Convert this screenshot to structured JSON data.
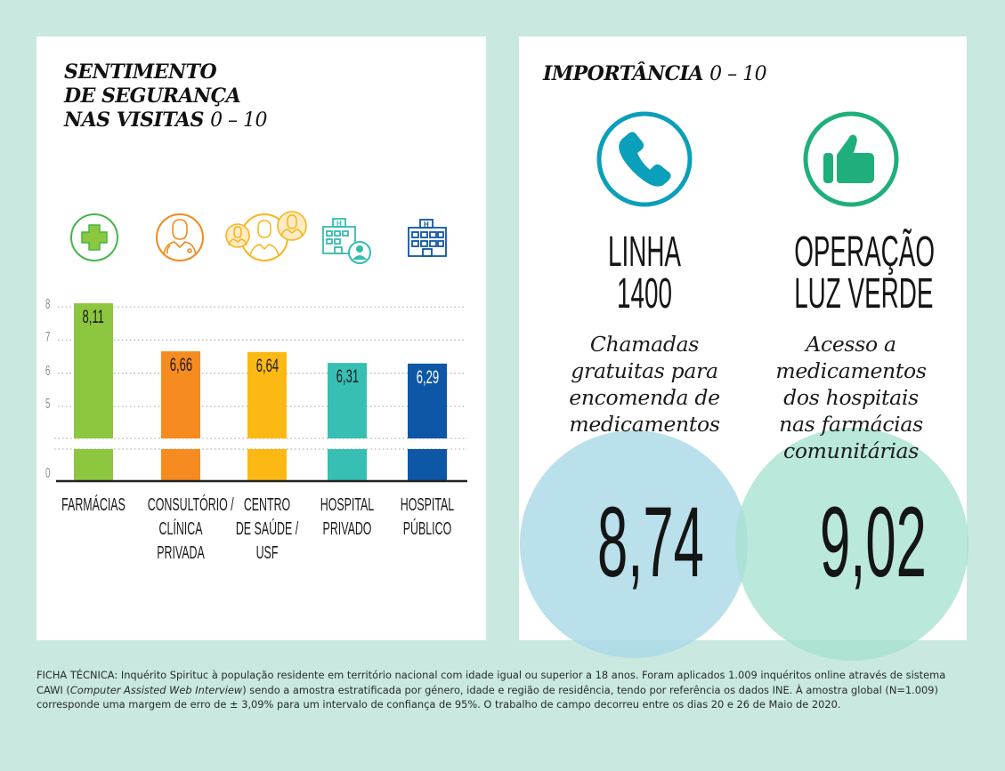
{
  "left_panel": {
    "title_lines": [
      "SENTIMENTO",
      "DE SEGURANÇA",
      "NAS VISITAS"
    ],
    "title_range": "0 – 10",
    "icons": [
      {
        "name": "pharmacy-cross-icon",
        "color": "#43b649"
      },
      {
        "name": "doctor-icon",
        "color": "#f08a1c"
      },
      {
        "name": "doctors-group-icon",
        "color": "#fbb419"
      },
      {
        "name": "hospital-person-icon",
        "color": "#35bcb1"
      },
      {
        "name": "hospital-icon",
        "color": "#0e56a6"
      }
    ]
  },
  "chart_data": {
    "type": "bar",
    "title": "SENTIMENTO DE SEGURANÇA NAS VISITAS 0 – 10",
    "categories": [
      [
        "FARMÁCIAS"
      ],
      [
        "CONSULTÓRIO /",
        "CLÍNICA",
        "PRIVADA"
      ],
      [
        "CENTRO",
        "DE SAÚDE /",
        "USF"
      ],
      [
        "HOSPITAL",
        "PRIVADO"
      ],
      [
        "HOSPITAL",
        "PÚBLICO"
      ]
    ],
    "values": [
      8.11,
      6.66,
      6.64,
      6.31,
      6.29
    ],
    "value_labels": [
      "8,11",
      "6,66",
      "6,64",
      "6,31",
      "6,29"
    ],
    "colors": [
      "#8dc63f",
      "#f68b1f",
      "#fdb913",
      "#37bfb3",
      "#0e56a6"
    ],
    "label_colors": [
      "#1a1a1a",
      "#1a1a1a",
      "#1a1a1a",
      "#1a1a1a",
      "#ffffff"
    ],
    "yticks": [
      0,
      5,
      6,
      7,
      8
    ],
    "ytick_labels": [
      "0",
      "5",
      "6",
      "7",
      "8"
    ],
    "ylim": [
      0,
      10
    ],
    "axis_break": true,
    "grid": true,
    "xlabel": "",
    "ylabel": ""
  },
  "right_panel": {
    "title": "IMPORTÂNCIA",
    "title_range": "0 – 10",
    "items": [
      {
        "icon": "phone-icon",
        "icon_color": "#0a9fba",
        "headline": [
          "LINHA",
          "1400"
        ],
        "description": [
          "Chamadas",
          "gratuitas para",
          "encomenda de",
          "medicamentos"
        ],
        "score": "8,74",
        "score_value": 8.74,
        "circle_color": "#a9d9e6"
      },
      {
        "icon": "thumbs-up-icon",
        "icon_color": "#1faf7a",
        "headline": [
          "OPERAÇÃO",
          "LUZ VERDE"
        ],
        "description": [
          "Acesso a",
          "medicamentos",
          "dos hospitais",
          "nas farmácias",
          "comunitárias"
        ],
        "score": "9,02",
        "score_value": 9.02,
        "circle_color": "#a6e1cf"
      }
    ]
  },
  "footer": {
    "prefix": "FICHA TÉCNICA: Inquérito Spirituc à população residente em território nacional com idade igual ou superior a 18 anos. Foram aplicados 1.009 inquéritos online através de sistema CAWI (",
    "italic": "Computer Assisted Web Interview",
    "suffix": ") sendo a amostra estratificada por género, idade e região de residência, tendo por referência os dados INE. À amostra global (N=1.009) corresponde uma margem de erro de ± 3,09% para um intervalo de confiança de 95%. O trabalho de campo decorreu entre os dias 20 e 26 de Maio de 2020."
  }
}
